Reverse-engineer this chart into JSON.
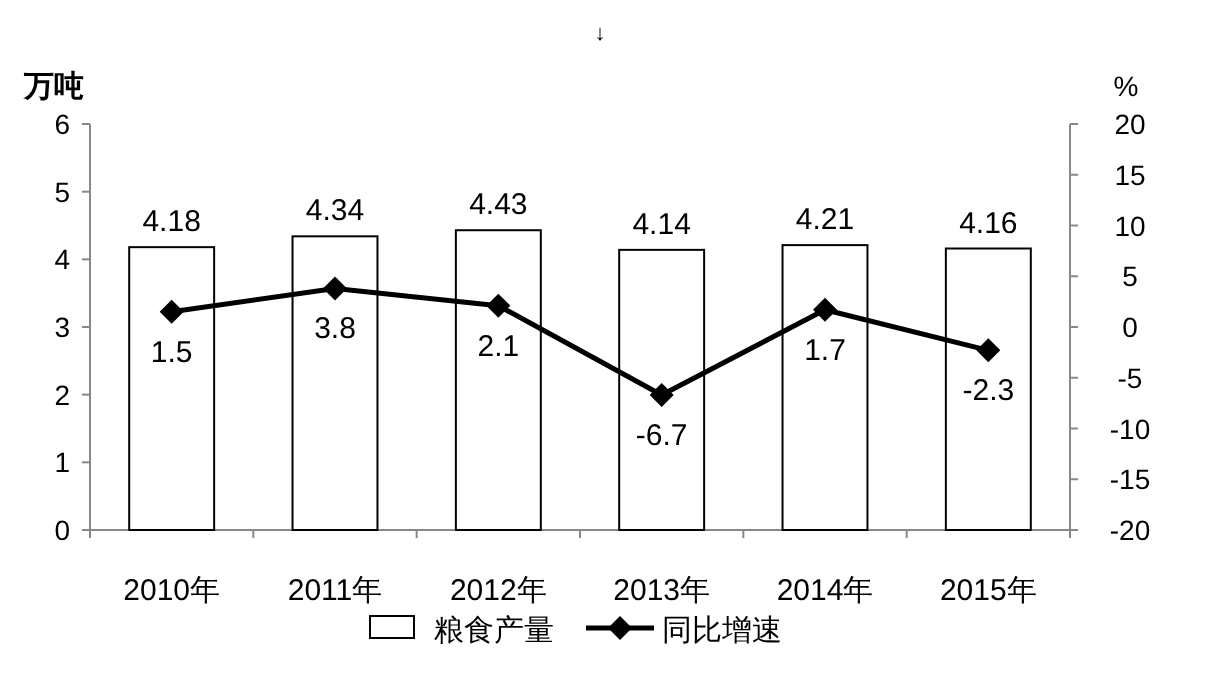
{
  "chart_data": {
    "type": "bar",
    "ylabel": "万吨",
    "y2label": "%",
    "annotations": [
      "↓"
    ],
    "categories": [
      "2010年",
      "2011年",
      "2012年",
      "2013年",
      "2014年",
      "2015年"
    ],
    "series": [
      {
        "name": "粮食产量",
        "color": "#ffffff",
        "values": [
          4.18,
          4.34,
          4.43,
          4.14,
          4.21,
          4.16
        ]
      },
      {
        "name": "同比增速",
        "type": "line",
        "axis": "y2",
        "color": "#000000",
        "values": [
          1.5,
          3.8,
          2.1,
          -6.7,
          1.7,
          -2.3
        ]
      }
    ],
    "ylim": [
      0,
      6
    ],
    "yticks": [
      0,
      1,
      2,
      3,
      4,
      5,
      6
    ],
    "y2lim": [
      -20,
      20
    ],
    "y2ticks": [
      -20,
      -15,
      -10,
      -5,
      0,
      5,
      10,
      15,
      20
    ],
    "marker": "diamond",
    "data_labels": true,
    "legend": "bottom",
    "grid": false
  }
}
